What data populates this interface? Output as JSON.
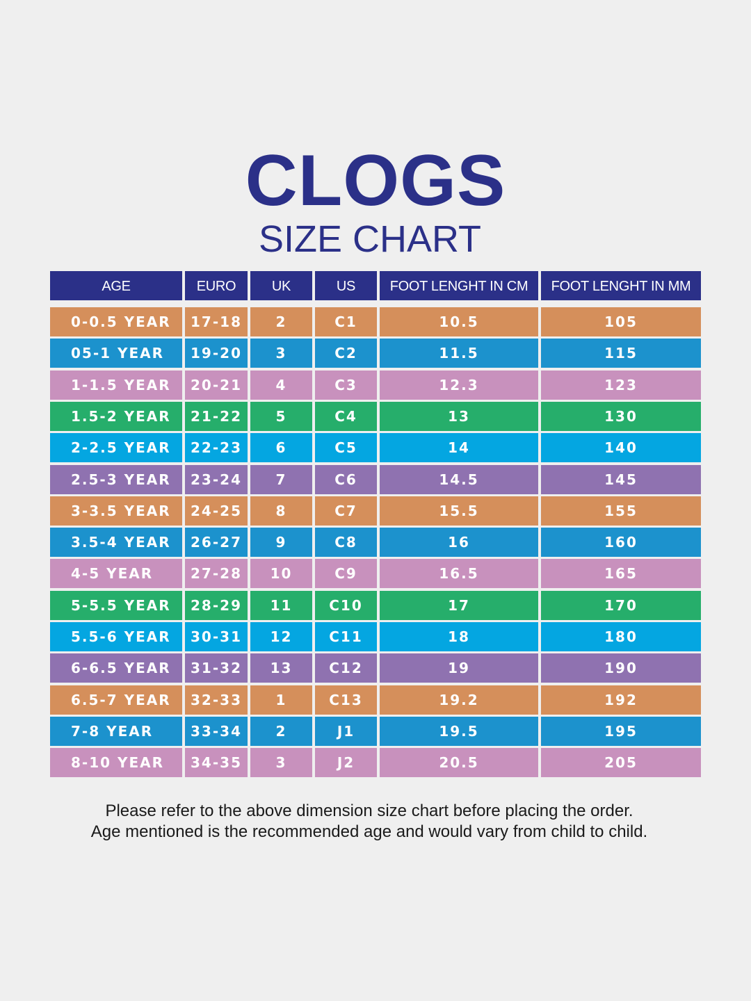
{
  "title": "CLOGS",
  "subtitle": "SIZE CHART",
  "colors": {
    "heading": "#2b3088",
    "orange": "#d58f5b",
    "blue": "#1c92cd",
    "pink": "#c891bd",
    "green": "#26ae6b",
    "cyan": "#04a6e1",
    "purple": "#8f72b0"
  },
  "table": {
    "headers": [
      "AGE",
      "EURO",
      "UK",
      "US",
      "FOOT LENGHT IN CM",
      "FOOT LENGHT IN MM"
    ],
    "rows": [
      {
        "color": "orange",
        "cells": [
          "0-0.5 YEAR",
          "17-18",
          "2",
          "C1",
          "10.5",
          "105"
        ]
      },
      {
        "color": "blue",
        "cells": [
          "05-1 YEAR",
          "19-20",
          "3",
          "C2",
          "11.5",
          "115"
        ]
      },
      {
        "color": "pink",
        "cells": [
          "1-1.5 YEAR",
          "20-21",
          "4",
          "C3",
          "12.3",
          "123"
        ]
      },
      {
        "color": "green",
        "cells": [
          "1.5-2 YEAR",
          "21-22",
          "5",
          "C4",
          "13",
          "130"
        ]
      },
      {
        "color": "cyan",
        "cells": [
          "2-2.5 YEAR",
          "22-23",
          "6",
          "C5",
          "14",
          "140"
        ]
      },
      {
        "color": "purple",
        "cells": [
          "2.5-3 YEAR",
          "23-24",
          "7",
          "C6",
          "14.5",
          "145"
        ]
      },
      {
        "color": "orange",
        "cells": [
          "3-3.5 YEAR",
          "24-25",
          "8",
          "C7",
          "15.5",
          "155"
        ]
      },
      {
        "color": "blue",
        "cells": [
          "3.5-4 YEAR",
          "26-27",
          "9",
          "C8",
          "16",
          "160"
        ]
      },
      {
        "color": "pink",
        "cells": [
          "4-5 YEAR",
          "27-28",
          "10",
          "C9",
          "16.5",
          "165"
        ]
      },
      {
        "color": "green",
        "cells": [
          "5-5.5 YEAR",
          "28-29",
          "11",
          "C10",
          "17",
          "170"
        ]
      },
      {
        "color": "cyan",
        "cells": [
          "5.5-6 YEAR",
          "30-31",
          "12",
          "C11",
          "18",
          "180"
        ]
      },
      {
        "color": "purple",
        "cells": [
          "6-6.5 YEAR",
          "31-32",
          "13",
          "C12",
          "19",
          "190"
        ]
      },
      {
        "color": "orange",
        "cells": [
          "6.5-7 YEAR",
          "32-33",
          "1",
          "C13",
          "19.2",
          "192"
        ]
      },
      {
        "color": "blue",
        "cells": [
          "7-8 YEAR",
          "33-34",
          "2",
          "J1",
          "19.5",
          "195"
        ]
      },
      {
        "color": "pink",
        "cells": [
          "8-10 YEAR",
          "34-35",
          "3",
          "J2",
          "20.5",
          "205"
        ]
      }
    ]
  },
  "notes": {
    "line1": "Please refer to the above dimension size chart before placing the order.",
    "line2": "Age mentioned is the recommended age and would vary from child to child."
  }
}
